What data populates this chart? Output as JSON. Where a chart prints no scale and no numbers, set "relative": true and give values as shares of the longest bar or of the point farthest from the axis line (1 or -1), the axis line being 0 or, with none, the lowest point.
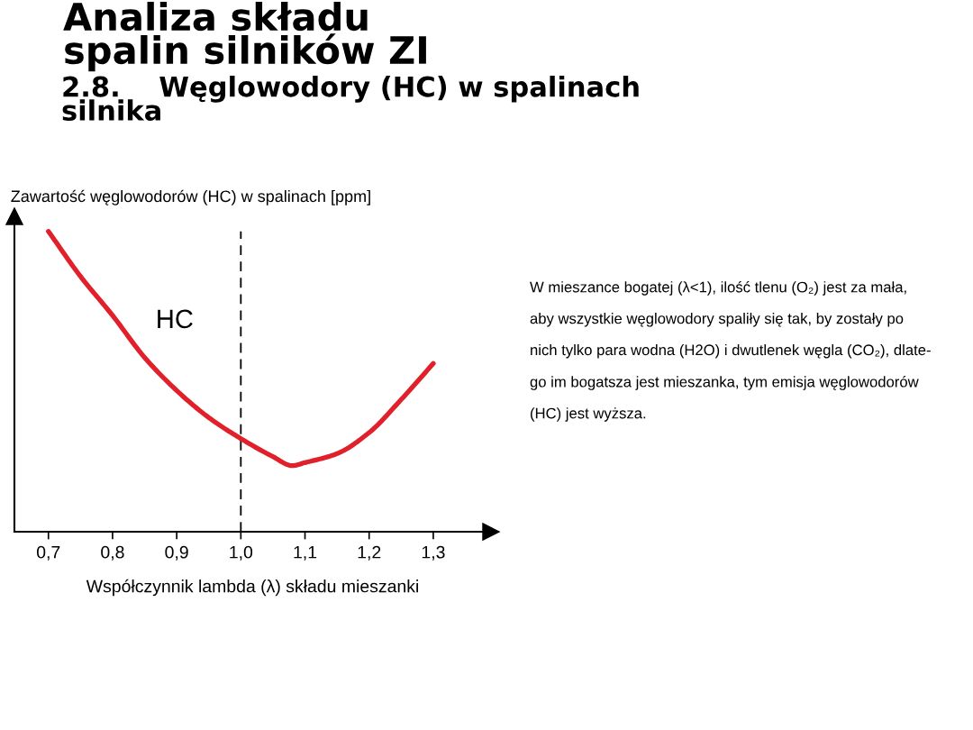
{
  "chart_data": {
    "type": "line",
    "title": "Analiza składu\nspalin silników ZI",
    "subtitle": "2.8.    Węglowodory (HC) w spalinach\nsilnika",
    "xlabel": "Współczynnik lambda (λ) składu mieszanki",
    "ylabel": "Zawartość węglowodorów (HC) w spalinach [ppm]",
    "annotations": [
      "W mieszance bogatej (λ<1), ilość tlenu (O₂) jest za mała,\naby wszystkie węglowodory spaliły się tak, by zostały po\nnich tylko para wodna (H2O) i dwutlenek węgla (CO₂), dlate-\ngo im bogatsza jest mieszanka, tym emisja węglowodorów\n(HC) jest wyższa."
    ],
    "relative": true,
    "x": [
      0.7,
      0.75,
      0.8,
      0.85,
      0.9,
      0.95,
      1.0,
      1.05,
      1.08,
      1.1,
      1.15,
      1.2,
      1.25,
      1.3
    ],
    "series": [
      {
        "name": "HC",
        "color": "#e0202a",
        "values": [
          1.0,
          0.85,
          0.72,
          0.58,
          0.47,
          0.38,
          0.31,
          0.25,
          0.22,
          0.23,
          0.26,
          0.33,
          0.44,
          0.56
        ]
      }
    ],
    "xlim": [
      0.647,
      1.39
    ],
    "xticks": [
      {
        "value": 0.7,
        "label": "0,7"
      },
      {
        "value": 0.8,
        "label": "0,8"
      },
      {
        "value": 0.9,
        "label": "0,9"
      },
      {
        "value": 1.0,
        "label": "1,0"
      },
      {
        "value": 1.1,
        "label": "1,1"
      },
      {
        "value": 1.2,
        "label": "1,2"
      },
      {
        "value": 1.3,
        "label": "1,3"
      }
    ],
    "ref_lines": [
      {
        "axis": "x",
        "value": 1.0,
        "color": "#000000",
        "line_style": "dashed"
      }
    ]
  }
}
